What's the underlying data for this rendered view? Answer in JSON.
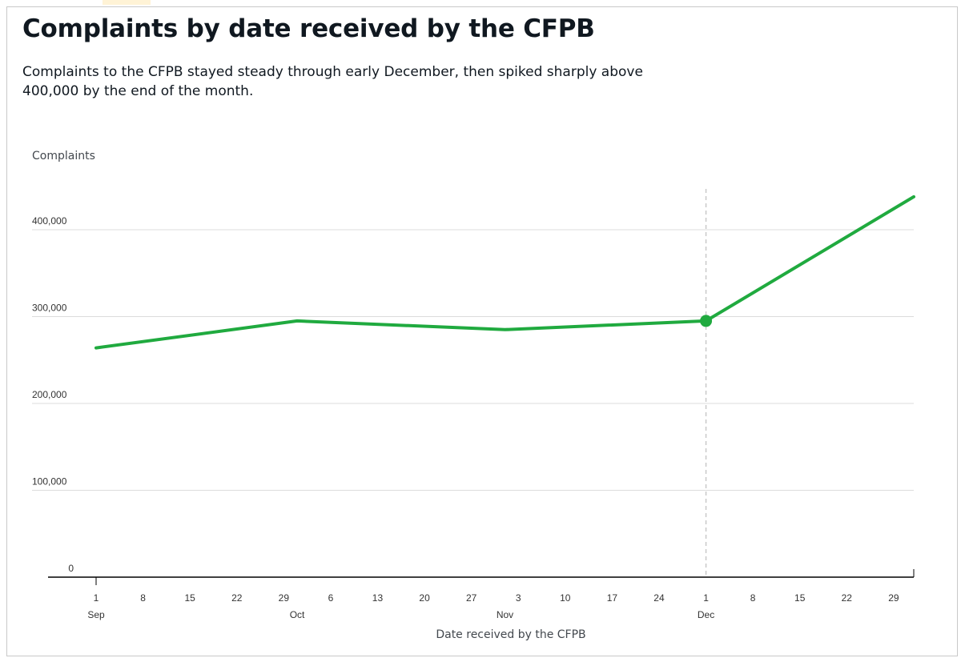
{
  "title": "Complaints by date received by the CFPB",
  "description": "Complaints to the CFPB stayed steady through early December, then spiked sharply above 400,000 by the end of the month.",
  "colors": {
    "line": "#20aa3f",
    "text": "#101820",
    "grid": "#dcdcdc",
    "accent_tab": "#fff3d6"
  },
  "chart_data": {
    "type": "line",
    "title": "Complaints by date received by the CFPB",
    "xlabel": "Date received by the CFPB",
    "ylabel": "Complaints",
    "ylim": [
      0,
      400000
    ],
    "y_ticks": [
      "0",
      "100,000",
      "200,000",
      "300,000",
      "400,000"
    ],
    "y_tick_values": [
      0,
      100000,
      200000,
      300000,
      400000
    ],
    "x_tick_labels": [
      "1",
      "8",
      "15",
      "22",
      "29",
      "6",
      "13",
      "20",
      "27",
      "3",
      "10",
      "17",
      "24",
      "1",
      "8",
      "15",
      "22",
      "29"
    ],
    "x_tick_dates": [
      "2020-09-01",
      "2020-09-08",
      "2020-09-15",
      "2020-09-22",
      "2020-09-29",
      "2020-10-06",
      "2020-10-13",
      "2020-10-20",
      "2020-10-27",
      "2020-11-03",
      "2020-11-10",
      "2020-11-17",
      "2020-11-24",
      "2020-12-01",
      "2020-12-08",
      "2020-12-15",
      "2020-12-22",
      "2020-12-29"
    ],
    "month_labels": [
      "Sep",
      "Oct",
      "Nov",
      "Dec"
    ],
    "month_dates": [
      "2020-09-01",
      "2020-10-01",
      "2020-11-01",
      "2020-12-01"
    ],
    "x_range": [
      "2020-09-01",
      "2021-01-01"
    ],
    "grid": true,
    "highlight_date": "2020-12-01",
    "series": [
      {
        "x": [
          "2020-09-01",
          "2020-10-01",
          "2020-11-01",
          "2020-12-01",
          "2021-01-01"
        ],
        "values": [
          264000,
          295000,
          285000,
          295000,
          438000
        ]
      }
    ]
  }
}
